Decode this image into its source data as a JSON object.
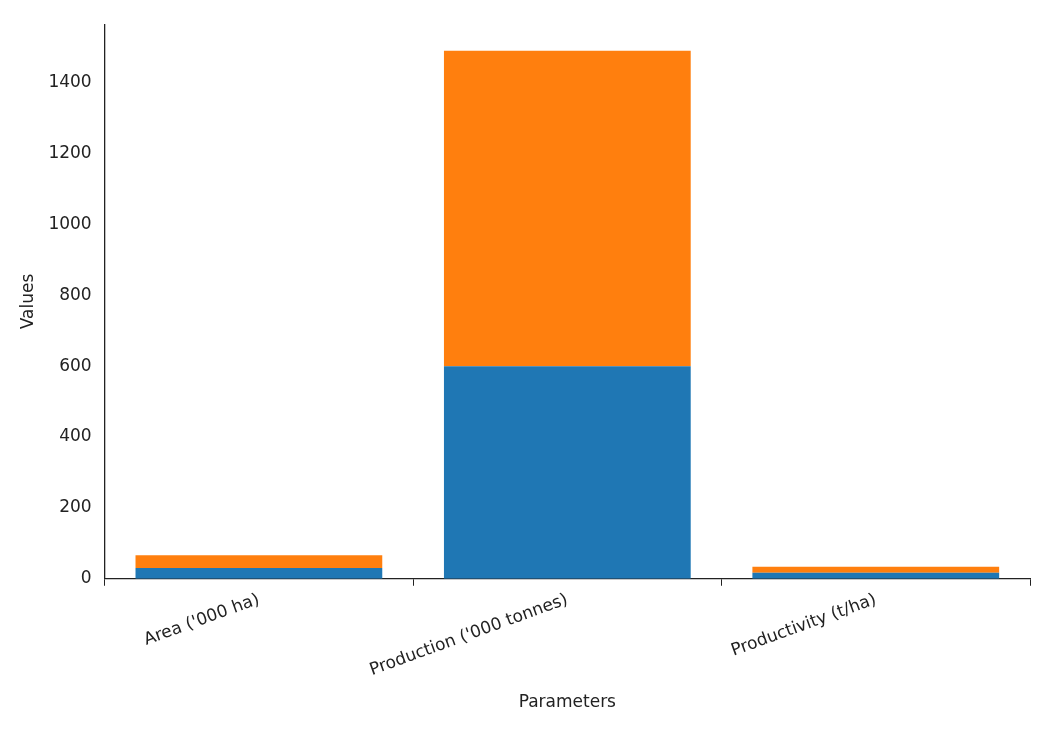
{
  "chart_data": {
    "type": "bar",
    "xlabel": "Parameters",
    "ylabel": "Values",
    "categories": [
      "Area ('000 ha)",
      "Production ('000 tonnes)",
      "Productivity (t/ha)"
    ],
    "stacked": true,
    "series": [
      {
        "color": "#1f77b4",
        "values": [
          30,
          600,
          17
        ]
      },
      {
        "color": "#ff7f0e",
        "values": [
          36,
          890,
          17
        ]
      }
    ],
    "ylim": [
      0,
      1565
    ],
    "yticks": [
      0,
      200,
      400,
      600,
      800,
      1000,
      1200,
      1400
    ],
    "grid": false,
    "legend": false
  }
}
